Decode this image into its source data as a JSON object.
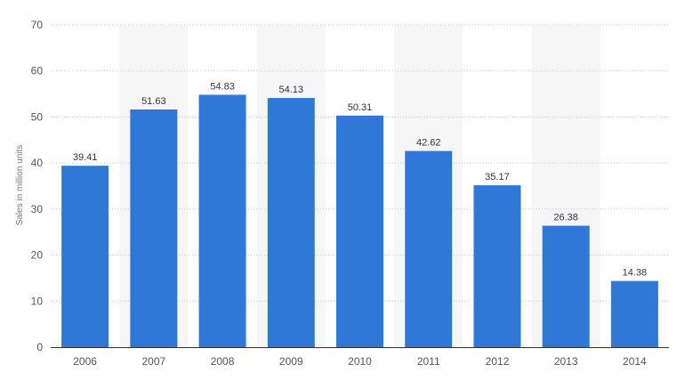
{
  "chart_data": {
    "type": "bar",
    "categories": [
      "2006",
      "2007",
      "2008",
      "2009",
      "2010",
      "2011",
      "2012",
      "2013",
      "2014"
    ],
    "values": [
      39.41,
      51.63,
      54.83,
      54.13,
      50.31,
      42.62,
      35.17,
      26.38,
      14.38
    ],
    "value_labels": [
      "39.41",
      "51.63",
      "54.83",
      "54.13",
      "50.31",
      "42.62",
      "35.17",
      "26.38",
      "14.38"
    ],
    "ylabel": "Sales in million units",
    "ylim": [
      0,
      70
    ],
    "yticks": [
      "0",
      "10",
      "20",
      "30",
      "40",
      "50",
      "60",
      "70"
    ],
    "grid": true,
    "colors": {
      "bar": "#2f78d8",
      "band": "#f6f6f6",
      "grid": "#c8c8c8",
      "axis": "#333333"
    }
  }
}
